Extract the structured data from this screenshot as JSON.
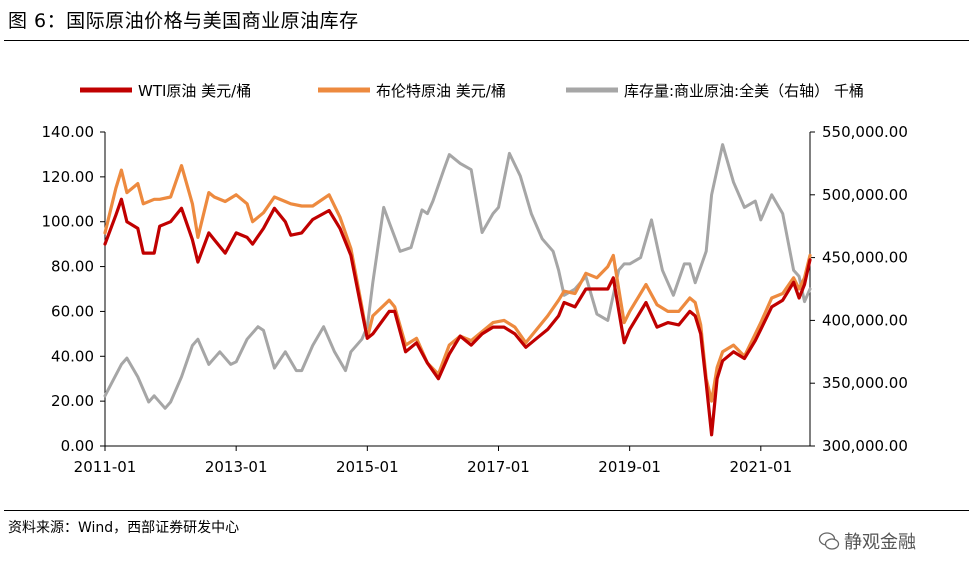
{
  "title": "图 6：国际原油价格与美国商业原油库存",
  "source": "资料来源：Wind，西部证券研发中心",
  "watermark": "静观金融",
  "colors": {
    "wti": "#c00000",
    "brent": "#ed8a3f",
    "inventory": "#a6a6a6"
  },
  "chart_data": {
    "type": "line",
    "legend_placement": "top",
    "grid": false,
    "x_range": [
      "2011-01",
      "2021-10"
    ],
    "x_ticks": [
      "2011-01",
      "2013-01",
      "2015-01",
      "2017-01",
      "2019-01",
      "2021-01"
    ],
    "y_left": {
      "range": [
        0,
        140
      ],
      "ticks": [
        "0.00",
        "20.00",
        "40.00",
        "60.00",
        "80.00",
        "100.00",
        "120.00",
        "140.00"
      ]
    },
    "y_right": {
      "range": [
        300000,
        550000
      ],
      "ticks": [
        "300,000.00",
        "350,000.00",
        "400,000.00",
        "450,000.00",
        "500,000.00",
        "550,000.00"
      ]
    },
    "series": [
      {
        "name": "WTI原油 美元/桶",
        "axis": "left",
        "color": "#c00000",
        "points": [
          [
            "2011-01",
            90
          ],
          [
            "2011-03",
            103
          ],
          [
            "2011-04",
            110
          ],
          [
            "2011-05",
            100
          ],
          [
            "2011-07",
            97
          ],
          [
            "2011-08",
            86
          ],
          [
            "2011-10",
            86
          ],
          [
            "2011-11",
            98
          ],
          [
            "2012-01",
            100
          ],
          [
            "2012-03",
            106
          ],
          [
            "2012-05",
            92
          ],
          [
            "2012-06",
            82
          ],
          [
            "2012-08",
            95
          ],
          [
            "2012-09",
            92
          ],
          [
            "2012-11",
            86
          ],
          [
            "2013-01",
            95
          ],
          [
            "2013-03",
            93
          ],
          [
            "2013-04",
            90
          ],
          [
            "2013-06",
            97
          ],
          [
            "2013-08",
            106
          ],
          [
            "2013-10",
            100
          ],
          [
            "2013-11",
            94
          ],
          [
            "2014-01",
            95
          ],
          [
            "2014-03",
            101
          ],
          [
            "2014-06",
            105
          ],
          [
            "2014-08",
            97
          ],
          [
            "2014-10",
            85
          ],
          [
            "2014-12",
            60
          ],
          [
            "2015-01",
            48
          ],
          [
            "2015-02",
            50
          ],
          [
            "2015-05",
            60
          ],
          [
            "2015-06",
            60
          ],
          [
            "2015-08",
            42
          ],
          [
            "2015-10",
            46
          ],
          [
            "2015-12",
            37
          ],
          [
            "2016-02",
            30
          ],
          [
            "2016-04",
            41
          ],
          [
            "2016-06",
            49
          ],
          [
            "2016-08",
            45
          ],
          [
            "2016-10",
            50
          ],
          [
            "2016-12",
            53
          ],
          [
            "2017-02",
            53
          ],
          [
            "2017-04",
            50
          ],
          [
            "2017-06",
            44
          ],
          [
            "2017-08",
            48
          ],
          [
            "2017-10",
            52
          ],
          [
            "2017-12",
            58
          ],
          [
            "2018-01",
            64
          ],
          [
            "2018-03",
            62
          ],
          [
            "2018-05",
            70
          ],
          [
            "2018-07",
            70
          ],
          [
            "2018-09",
            70
          ],
          [
            "2018-10",
            75
          ],
          [
            "2018-12",
            46
          ],
          [
            "2019-01",
            52
          ],
          [
            "2019-04",
            64
          ],
          [
            "2019-06",
            53
          ],
          [
            "2019-08",
            55
          ],
          [
            "2019-10",
            54
          ],
          [
            "2019-12",
            60
          ],
          [
            "2020-01",
            58
          ],
          [
            "2020-02",
            50
          ],
          [
            "2020-03",
            28
          ],
          [
            "2020-04",
            5
          ],
          [
            "2020-05",
            30
          ],
          [
            "2020-06",
            38
          ],
          [
            "2020-08",
            42
          ],
          [
            "2020-10",
            39
          ],
          [
            "2020-12",
            47
          ],
          [
            "2021-01",
            52
          ],
          [
            "2021-03",
            62
          ],
          [
            "2021-05",
            65
          ],
          [
            "2021-07",
            73
          ],
          [
            "2021-08",
            66
          ],
          [
            "2021-09",
            72
          ],
          [
            "2021-10",
            83
          ]
        ]
      },
      {
        "name": "布伦特原油 美元/桶",
        "axis": "left",
        "color": "#ed8a3f",
        "points": [
          [
            "2011-01",
            95
          ],
          [
            "2011-03",
            115
          ],
          [
            "2011-04",
            123
          ],
          [
            "2011-05",
            113
          ],
          [
            "2011-07",
            117
          ],
          [
            "2011-08",
            108
          ],
          [
            "2011-10",
            110
          ],
          [
            "2011-11",
            110
          ],
          [
            "2012-01",
            111
          ],
          [
            "2012-03",
            125
          ],
          [
            "2012-05",
            108
          ],
          [
            "2012-06",
            93
          ],
          [
            "2012-08",
            113
          ],
          [
            "2012-09",
            111
          ],
          [
            "2012-11",
            109
          ],
          [
            "2013-01",
            112
          ],
          [
            "2013-03",
            108
          ],
          [
            "2013-04",
            100
          ],
          [
            "2013-06",
            104
          ],
          [
            "2013-08",
            111
          ],
          [
            "2013-10",
            109
          ],
          [
            "2013-11",
            108
          ],
          [
            "2014-01",
            107
          ],
          [
            "2014-03",
            107
          ],
          [
            "2014-06",
            112
          ],
          [
            "2014-08",
            102
          ],
          [
            "2014-10",
            88
          ],
          [
            "2014-12",
            62
          ],
          [
            "2015-01",
            48
          ],
          [
            "2015-02",
            58
          ],
          [
            "2015-05",
            65
          ],
          [
            "2015-06",
            62
          ],
          [
            "2015-08",
            45
          ],
          [
            "2015-10",
            48
          ],
          [
            "2015-12",
            37
          ],
          [
            "2016-02",
            32
          ],
          [
            "2016-04",
            45
          ],
          [
            "2016-06",
            49
          ],
          [
            "2016-08",
            47
          ],
          [
            "2016-10",
            51
          ],
          [
            "2016-12",
            55
          ],
          [
            "2017-02",
            56
          ],
          [
            "2017-04",
            53
          ],
          [
            "2017-06",
            46
          ],
          [
            "2017-08",
            52
          ],
          [
            "2017-10",
            58
          ],
          [
            "2017-12",
            65
          ],
          [
            "2018-01",
            69
          ],
          [
            "2018-03",
            68
          ],
          [
            "2018-05",
            77
          ],
          [
            "2018-07",
            75
          ],
          [
            "2018-09",
            80
          ],
          [
            "2018-10",
            85
          ],
          [
            "2018-12",
            55
          ],
          [
            "2019-01",
            60
          ],
          [
            "2019-04",
            72
          ],
          [
            "2019-06",
            63
          ],
          [
            "2019-08",
            60
          ],
          [
            "2019-10",
            60
          ],
          [
            "2019-12",
            66
          ],
          [
            "2020-01",
            64
          ],
          [
            "2020-02",
            54
          ],
          [
            "2020-03",
            30
          ],
          [
            "2020-04",
            20
          ],
          [
            "2020-05",
            35
          ],
          [
            "2020-06",
            42
          ],
          [
            "2020-08",
            45
          ],
          [
            "2020-10",
            40
          ],
          [
            "2020-12",
            50
          ],
          [
            "2021-01",
            55
          ],
          [
            "2021-03",
            66
          ],
          [
            "2021-05",
            68
          ],
          [
            "2021-07",
            75
          ],
          [
            "2021-08",
            70
          ],
          [
            "2021-09",
            75
          ],
          [
            "2021-10",
            85
          ]
        ]
      },
      {
        "name": "库存量:商业原油:全美（右轴） 千桶",
        "axis": "right",
        "color": "#a6a6a6",
        "points": [
          [
            "2011-01",
            340000
          ],
          [
            "2011-04",
            365000
          ],
          [
            "2011-05",
            370000
          ],
          [
            "2011-07",
            355000
          ],
          [
            "2011-09",
            335000
          ],
          [
            "2011-10",
            340000
          ],
          [
            "2011-12",
            330000
          ],
          [
            "2012-01",
            335000
          ],
          [
            "2012-03",
            355000
          ],
          [
            "2012-05",
            380000
          ],
          [
            "2012-06",
            385000
          ],
          [
            "2012-08",
            365000
          ],
          [
            "2012-10",
            375000
          ],
          [
            "2012-12",
            365000
          ],
          [
            "2013-01",
            367000
          ],
          [
            "2013-03",
            385000
          ],
          [
            "2013-05",
            395000
          ],
          [
            "2013-06",
            392000
          ],
          [
            "2013-08",
            362000
          ],
          [
            "2013-10",
            375000
          ],
          [
            "2013-12",
            360000
          ],
          [
            "2014-01",
            360000
          ],
          [
            "2014-03",
            380000
          ],
          [
            "2014-05",
            395000
          ],
          [
            "2014-07",
            375000
          ],
          [
            "2014-09",
            360000
          ],
          [
            "2014-10",
            375000
          ],
          [
            "2014-12",
            385000
          ],
          [
            "2015-01",
            395000
          ],
          [
            "2015-02",
            430000
          ],
          [
            "2015-04",
            490000
          ],
          [
            "2015-05",
            478000
          ],
          [
            "2015-07",
            455000
          ],
          [
            "2015-09",
            458000
          ],
          [
            "2015-11",
            488000
          ],
          [
            "2015-12",
            485000
          ],
          [
            "2016-01",
            495000
          ],
          [
            "2016-03",
            520000
          ],
          [
            "2016-04",
            532000
          ],
          [
            "2016-06",
            525000
          ],
          [
            "2016-08",
            520000
          ],
          [
            "2016-10",
            470000
          ],
          [
            "2016-12",
            485000
          ],
          [
            "2017-01",
            490000
          ],
          [
            "2017-03",
            533000
          ],
          [
            "2017-05",
            515000
          ],
          [
            "2017-07",
            485000
          ],
          [
            "2017-09",
            465000
          ],
          [
            "2017-11",
            455000
          ],
          [
            "2017-12",
            440000
          ],
          [
            "2018-01",
            420000
          ],
          [
            "2018-03",
            425000
          ],
          [
            "2018-05",
            435000
          ],
          [
            "2018-07",
            405000
          ],
          [
            "2018-09",
            400000
          ],
          [
            "2018-11",
            440000
          ],
          [
            "2018-12",
            445000
          ],
          [
            "2019-01",
            445000
          ],
          [
            "2019-03",
            450000
          ],
          [
            "2019-05",
            480000
          ],
          [
            "2019-07",
            440000
          ],
          [
            "2019-09",
            420000
          ],
          [
            "2019-11",
            445000
          ],
          [
            "2019-12",
            445000
          ],
          [
            "2020-01",
            430000
          ],
          [
            "2020-03",
            455000
          ],
          [
            "2020-04",
            500000
          ],
          [
            "2020-06",
            540000
          ],
          [
            "2020-08",
            510000
          ],
          [
            "2020-10",
            490000
          ],
          [
            "2020-12",
            495000
          ],
          [
            "2021-01",
            480000
          ],
          [
            "2021-03",
            500000
          ],
          [
            "2021-05",
            485000
          ],
          [
            "2021-07",
            440000
          ],
          [
            "2021-08",
            435000
          ],
          [
            "2021-09",
            415000
          ],
          [
            "2021-10",
            425000
          ]
        ]
      }
    ]
  }
}
